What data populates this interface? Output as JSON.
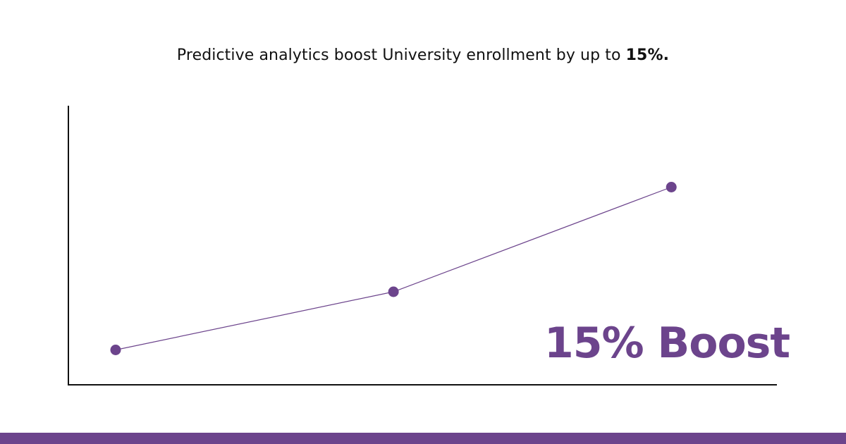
{
  "headline": {
    "text": "Predictive analytics boost University enrollment by up to ",
    "emphasis": "15%."
  },
  "callout": {
    "text": "15% Boost"
  },
  "colors": {
    "accent": "#6c448c",
    "axis": "#111111",
    "text": "#111111",
    "background": "#ffffff"
  },
  "chart_data": {
    "type": "line",
    "x": [
      1,
      2,
      3
    ],
    "values": [
      1,
      6,
      15
    ],
    "xlim": [
      0.83,
      3.38
    ],
    "ylim": [
      -2,
      22
    ],
    "grid": false,
    "title": "",
    "xlabel": "",
    "ylabel": ""
  }
}
